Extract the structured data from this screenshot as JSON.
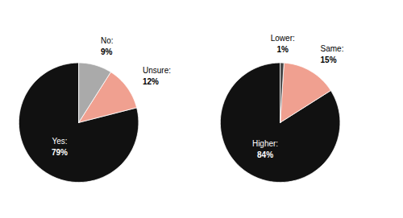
{
  "chart_data": [
    {
      "type": "pie",
      "categories": [
        "Yes:",
        "Unsure:",
        "No:"
      ],
      "values": [
        79,
        12,
        9
      ],
      "value_labels": [
        "79%",
        "12%",
        "9%"
      ],
      "colors": [
        "#111111",
        "#f0a090",
        "#aaaaaa"
      ],
      "data_labels": true
    },
    {
      "type": "pie",
      "categories": [
        "Higher:",
        "Same:",
        "Lower:"
      ],
      "values": [
        84,
        15,
        1
      ],
      "value_labels": [
        "84%",
        "15%",
        "1%"
      ],
      "colors": [
        "#111111",
        "#f0a090",
        "#444444"
      ],
      "data_labels": true
    }
  ]
}
